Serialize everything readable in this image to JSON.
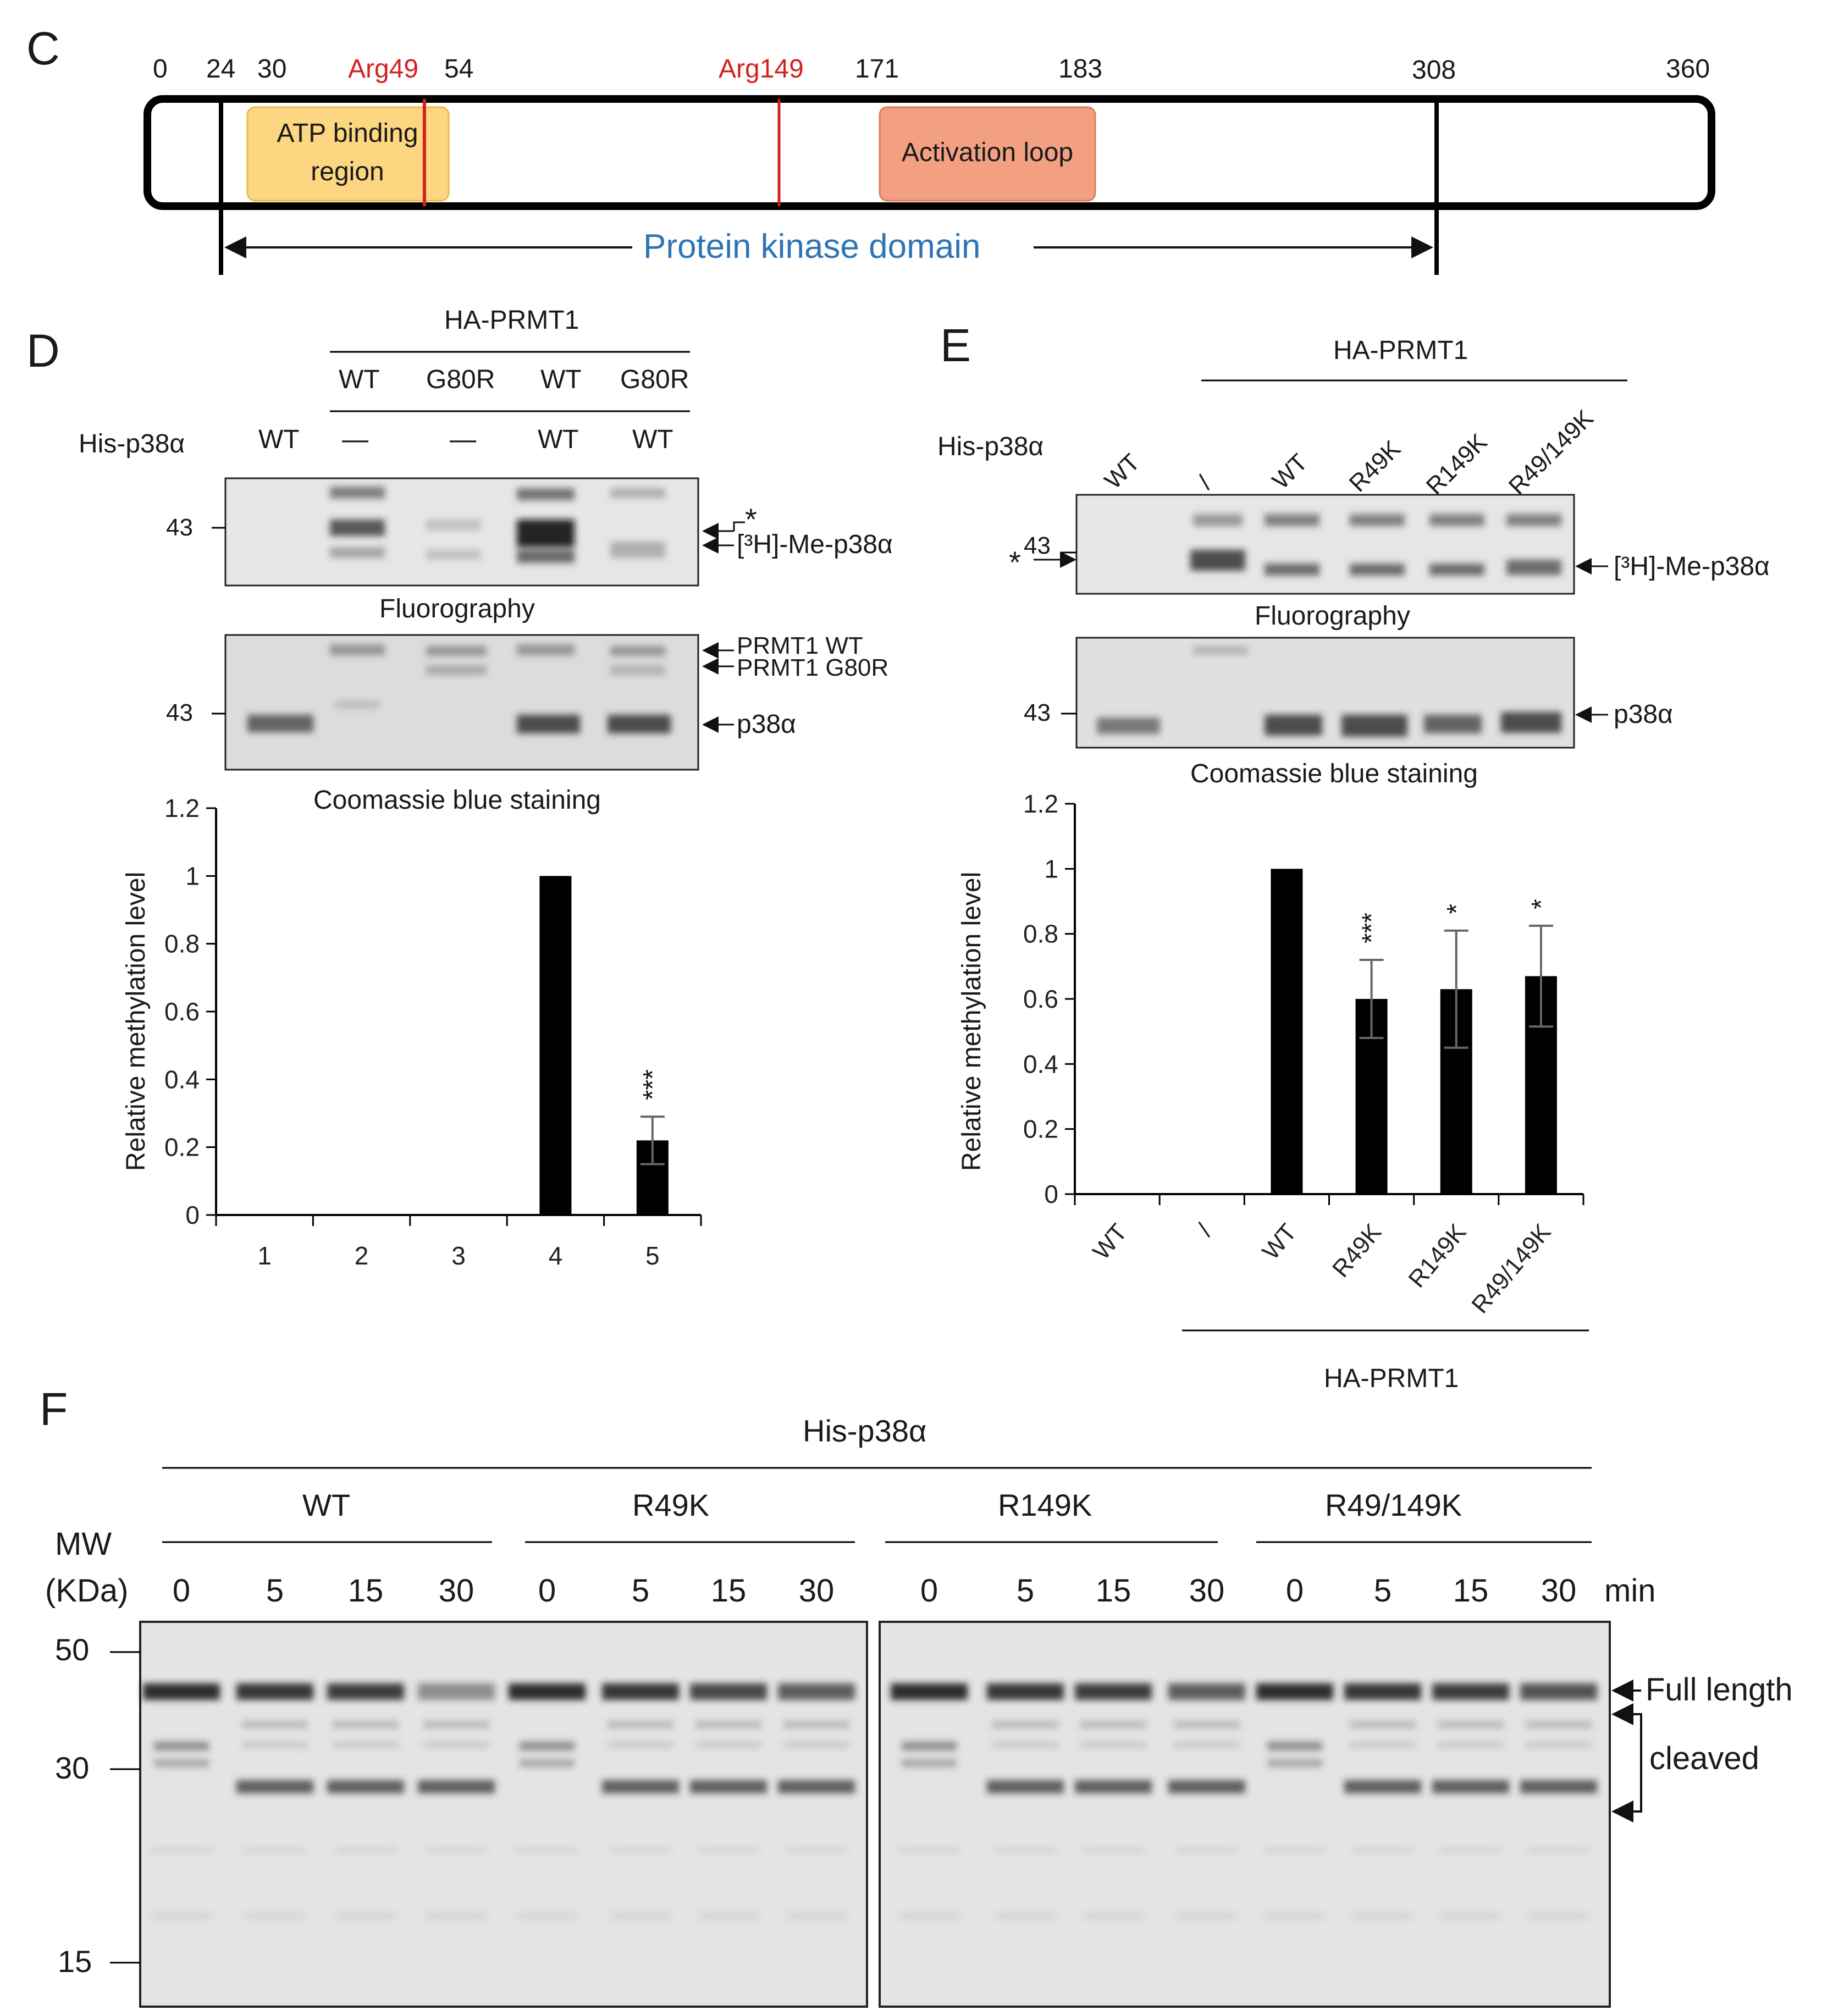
{
  "panel_c": {
    "letter": "C",
    "positions": [
      "0",
      "24",
      "30",
      "54",
      "171",
      "183",
      "308",
      "360"
    ],
    "arg_labels": [
      "Arg49",
      "Arg149"
    ],
    "box1_line1": "ATP binding",
    "box1_line2": "region",
    "box2": "Activation loop",
    "domain_label": "Protein kinase domain",
    "colors": {
      "arg": "#d42020",
      "domain": "#2e74b5",
      "atp_box": "#fcd680",
      "act_box": "#f3a082"
    }
  },
  "panel_d": {
    "letter": "D",
    "top_header": "HA-PRMT1",
    "prmt1_row": [
      "WT",
      "G80R",
      "WT",
      "G80R"
    ],
    "his_label": "His-p38α",
    "his_row": [
      "WT",
      "—",
      "—",
      "WT",
      "WT"
    ],
    "mw_marker": "43",
    "fluoro_caption": "Fluorography",
    "coomassie_caption": "Coomassie blue staining",
    "right_labels": {
      "star": "*",
      "me": "[³H]-Me-p38α",
      "prmt_wt": "PRMT1 WT",
      "prmt_g80r": "PRMT1 G80R",
      "p38": "p38α"
    },
    "ylabel": "Relative methylation level",
    "sig_label": "***"
  },
  "panel_e": {
    "letter": "E",
    "top_header": "HA-PRMT1",
    "his_label": "His-p38α",
    "lane_labels": [
      "WT",
      "/",
      "WT",
      "R49K",
      "R149K",
      "R49/149K"
    ],
    "mw_marker": "43",
    "star": "*",
    "fluoro_caption": "Fluorography",
    "coomassie_caption": "Coomassie blue staining",
    "right_labels": {
      "me": "[³H]-Me-p38α",
      "p38": "p38α"
    },
    "ylabel": "Relative methylation level",
    "bottom_header": "HA-PRMT1",
    "sig_labels": [
      "***",
      "*",
      "*"
    ]
  },
  "panel_f": {
    "letter": "F",
    "top_header": "His-p38α",
    "groups": [
      "WT",
      "R49K",
      "R149K",
      "R49/149K"
    ],
    "mw_title1": "MW",
    "mw_title2": "(KDa)",
    "times": [
      "0",
      "5",
      "15",
      "30"
    ],
    "time_unit": "min",
    "mw_markers": [
      "50",
      "30",
      "15"
    ],
    "full_length": "Full length",
    "cleaved": "cleaved"
  },
  "chart_data": [
    {
      "type": "bar",
      "panel": "D",
      "title": "",
      "xlabel": "",
      "ylabel": "Relative methylation level",
      "categories": [
        "1",
        "2",
        "3",
        "4",
        "5"
      ],
      "values": [
        0,
        0,
        0,
        1.0,
        0.22
      ],
      "errors": [
        0,
        0,
        0,
        0.003,
        0.07
      ],
      "significance": [
        "",
        "",
        "",
        "",
        "***"
      ],
      "ylim": [
        0,
        1.2
      ],
      "yticks": [
        "0",
        "0.2",
        "0.4",
        "0.6",
        "0.8",
        "1",
        "1.2"
      ],
      "grid": false
    },
    {
      "type": "bar",
      "panel": "E",
      "title": "",
      "xlabel": "",
      "ylabel": "Relative methylation level",
      "categories": [
        "WT",
        "/",
        "WT",
        "R49K",
        "R149K",
        "R49/149K"
      ],
      "values": [
        0,
        0,
        1.0,
        0.6,
        0.63,
        0.67
      ],
      "errors": [
        0,
        0,
        0.003,
        0.12,
        0.18,
        0.155
      ],
      "significance": [
        "",
        "",
        "",
        "***",
        "*",
        "*"
      ],
      "ylim": [
        0,
        1.2
      ],
      "yticks": [
        "0",
        "0.2",
        "0.4",
        "0.6",
        "0.8",
        "1",
        "1.2"
      ],
      "grid": false
    }
  ]
}
